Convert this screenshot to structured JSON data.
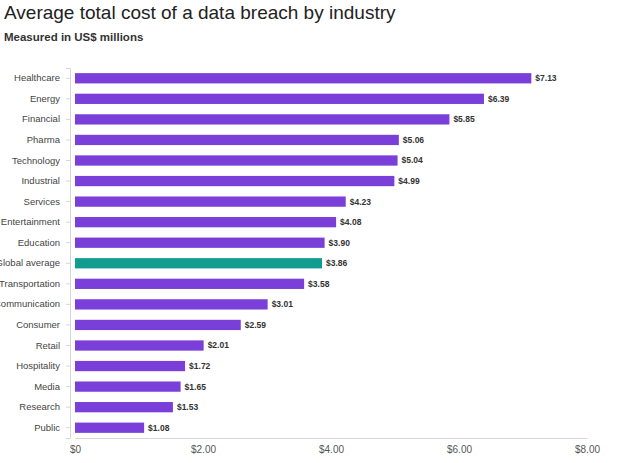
{
  "chart_data": {
    "type": "bar",
    "orientation": "horizontal",
    "title": "Average total cost of a data breach by industry",
    "subtitle": "Measured in US$ millions",
    "categories": [
      "Healthcare",
      "Energy",
      "Financial",
      "Pharma",
      "Technology",
      "Industrial",
      "Services",
      "Entertainment",
      "Education",
      "Global average",
      "Transportation",
      "Communication",
      "Consumer",
      "Retail",
      "Hospitality",
      "Media",
      "Research",
      "Public"
    ],
    "values": [
      7.13,
      6.39,
      5.85,
      5.06,
      5.04,
      4.99,
      4.23,
      4.08,
      3.9,
      3.86,
      3.58,
      3.01,
      2.59,
      2.01,
      1.72,
      1.65,
      1.53,
      1.08
    ],
    "value_labels": [
      "$7.13",
      "$6.39",
      "$5.85",
      "$5.06",
      "$5.04",
      "$4.99",
      "$4.23",
      "$4.08",
      "$3.90",
      "$3.86",
      "$3.58",
      "$3.01",
      "$2.59",
      "$2.01",
      "$1.72",
      "$1.65",
      "$1.53",
      "$1.08"
    ],
    "colors": [
      "#7b3fd9",
      "#7b3fd9",
      "#7b3fd9",
      "#7b3fd9",
      "#7b3fd9",
      "#7b3fd9",
      "#7b3fd9",
      "#7b3fd9",
      "#7b3fd9",
      "#129c90",
      "#7b3fd9",
      "#7b3fd9",
      "#7b3fd9",
      "#7b3fd9",
      "#7b3fd9",
      "#7b3fd9",
      "#7b3fd9",
      "#7b3fd9"
    ],
    "xlim": [
      0,
      8
    ],
    "xticks": [
      {
        "value": 0,
        "label": "$0"
      },
      {
        "value": 2,
        "label": "$2.00"
      },
      {
        "value": 4,
        "label": "$4.00"
      },
      {
        "value": 6,
        "label": "$6.00"
      },
      {
        "value": 8,
        "label": "$8.00"
      }
    ],
    "data_labels": true,
    "grid": false
  }
}
